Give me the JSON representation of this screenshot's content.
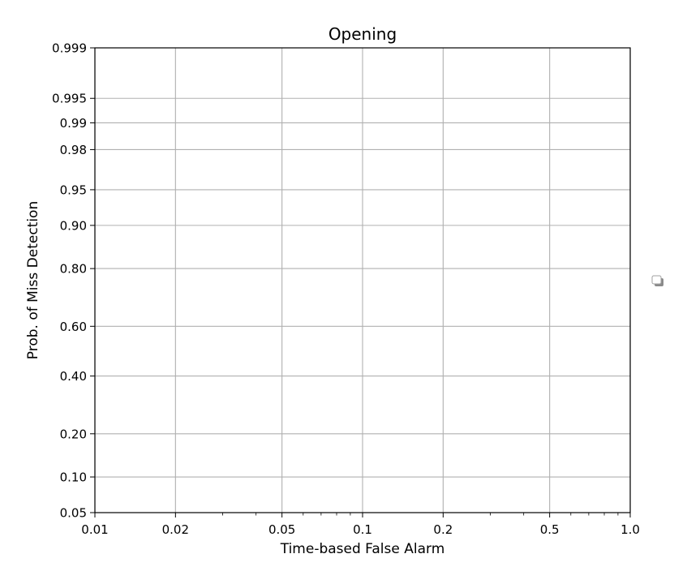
{
  "chart_data": {
    "type": "line",
    "title": "Opening",
    "xlabel": "Time-based False Alarm",
    "ylabel": "Prob. of Miss Detection",
    "xscale": "log",
    "yscale": "probit",
    "xlim": [
      0.01,
      1.0
    ],
    "ylim": [
      0.05,
      0.999
    ],
    "x_ticks": [
      0.01,
      0.02,
      0.05,
      0.1,
      0.2,
      0.5,
      1.0
    ],
    "x_tick_labels": [
      "0.01",
      "0.02",
      "0.05",
      "0.1",
      "0.2",
      "0.5",
      "1.0"
    ],
    "y_ticks": [
      0.05,
      0.1,
      0.2,
      0.4,
      0.6,
      0.8,
      0.9,
      0.95,
      0.98,
      0.99,
      0.995,
      0.999
    ],
    "y_tick_labels": [
      "0.05",
      "0.10",
      "0.20",
      "0.40",
      "0.60",
      "0.80",
      "0.90",
      "0.95",
      "0.98",
      "0.99",
      "0.995",
      "0.999"
    ],
    "grid": true,
    "legend": "right",
    "series": [],
    "colors": {
      "grid": "#b0b0b0",
      "axis": "#000000",
      "background": "#ffffff"
    }
  }
}
